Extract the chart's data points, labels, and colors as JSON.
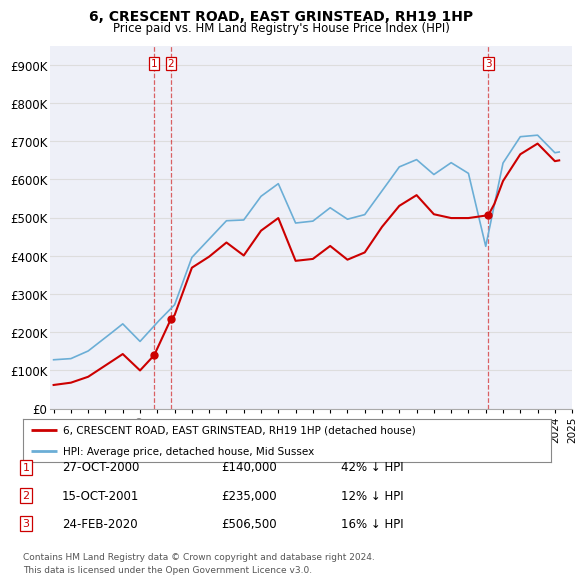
{
  "title": "6, CRESCENT ROAD, EAST GRINSTEAD, RH19 1HP",
  "subtitle": "Price paid vs. HM Land Registry's House Price Index (HPI)",
  "ylim": [
    0,
    950000
  ],
  "yticks": [
    0,
    100000,
    200000,
    300000,
    400000,
    500000,
    600000,
    700000,
    800000,
    900000
  ],
  "ytick_labels": [
    "£0",
    "£100K",
    "£200K",
    "£300K",
    "£400K",
    "£500K",
    "£600K",
    "£700K",
    "£800K",
    "£900K"
  ],
  "hpi_color": "#6baed6",
  "price_color": "#cc0000",
  "vline_color": "#cc0000",
  "grid_color": "#dddddd",
  "plot_bg_color": "#eef0f8",
  "legend_label_price": "6, CRESCENT ROAD, EAST GRINSTEAD, RH19 1HP (detached house)",
  "legend_label_hpi": "HPI: Average price, detached house, Mid Sussex",
  "transactions": [
    {
      "num": 1,
      "date": "27-OCT-2000",
      "price": 140000,
      "hpi_diff": "42% ↓ HPI",
      "x_year": 2000.82
    },
    {
      "num": 2,
      "date": "15-OCT-2001",
      "price": 235000,
      "hpi_diff": "12% ↓ HPI",
      "x_year": 2001.79
    },
    {
      "num": 3,
      "date": "24-FEB-2020",
      "price": 506500,
      "hpi_diff": "16% ↓ HPI",
      "x_year": 2020.15
    }
  ],
  "footnote1": "Contains HM Land Registry data © Crown copyright and database right 2024.",
  "footnote2": "This data is licensed under the Open Government Licence v3.0.",
  "xlim": [
    1994.8,
    2024.7
  ],
  "xticks": [
    1995,
    1996,
    1997,
    1998,
    1999,
    2000,
    2001,
    2002,
    2003,
    2004,
    2005,
    2006,
    2007,
    2008,
    2009,
    2010,
    2011,
    2012,
    2013,
    2014,
    2015,
    2016,
    2017,
    2018,
    2019,
    2020,
    2021,
    2022,
    2023,
    2024,
    2025
  ]
}
